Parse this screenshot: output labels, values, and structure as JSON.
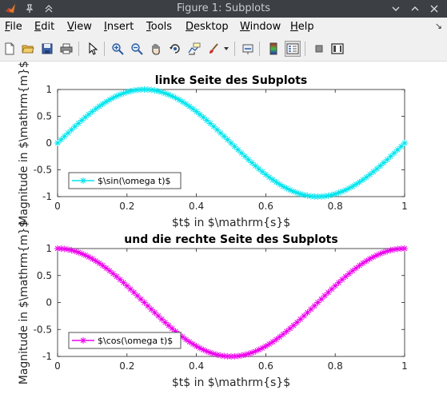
{
  "window": {
    "title": "Figure 1: Subplots"
  },
  "menu": [
    {
      "underline": "F",
      "rest": "ile"
    },
    {
      "underline": "E",
      "rest": "dit"
    },
    {
      "underline": "V",
      "rest": "iew"
    },
    {
      "underline": "I",
      "rest": "nsert"
    },
    {
      "underline": "T",
      "rest": "ools"
    },
    {
      "underline": "D",
      "rest": "esktop"
    },
    {
      "underline": "W",
      "rest": "indow"
    },
    {
      "underline": "H",
      "rest": "elp"
    }
  ],
  "toolbar": {
    "icons": [
      "new-figure-icon",
      "open-file-icon",
      "save-icon",
      "print-icon",
      "pointer-icon",
      "zoom-in-icon",
      "zoom-out-icon",
      "pan-hand-icon",
      "rotate-3d-icon",
      "data-cursor-icon",
      "brush-icon",
      "brush-dropdown-icon",
      "link-plot-icon",
      "colorbar-icon",
      "legend-icon",
      "hide-plot-tools-icon",
      "show-plot-tools-icon"
    ]
  },
  "chart_data": [
    {
      "type": "line",
      "title": "linke Seite des Subplots",
      "xlabel": "$t$ in $\\mathrm{s}$",
      "ylabel": "Magnitude in $\\mathrm{m}$",
      "xlim": [
        0,
        1
      ],
      "ylim": [
        -1,
        1
      ],
      "xticks": [
        "0",
        "0.2",
        "0.4",
        "0.6",
        "0.8",
        "1"
      ],
      "yticks": [
        "-1",
        "-0.5",
        "0",
        "0.5",
        "1"
      ],
      "grid": false,
      "legend_position": "bottom-left",
      "series": [
        {
          "name": "$\\sin(\\omega t)$",
          "function": "sin(2*pi*t)",
          "color": "#00e5ee",
          "marker": "*",
          "n_points": 101
        }
      ]
    },
    {
      "type": "line",
      "title": "und die rechte Seite des Subplots",
      "xlabel": "$t$ in $\\mathrm{s}$",
      "ylabel": "Magnitude in $\\mathrm{m}$",
      "xlim": [
        0,
        1
      ],
      "ylim": [
        -1,
        1
      ],
      "xticks": [
        "0",
        "0.2",
        "0.4",
        "0.6",
        "0.8",
        "1"
      ],
      "yticks": [
        "-1",
        "-0.5",
        "0",
        "0.5",
        "1"
      ],
      "grid": false,
      "legend_position": "bottom-left",
      "series": [
        {
          "name": "$\\cos(\\omega t)$",
          "function": "cos(2*pi*t)",
          "color": "#ee00ee",
          "marker": "*",
          "n_points": 101
        }
      ]
    }
  ]
}
